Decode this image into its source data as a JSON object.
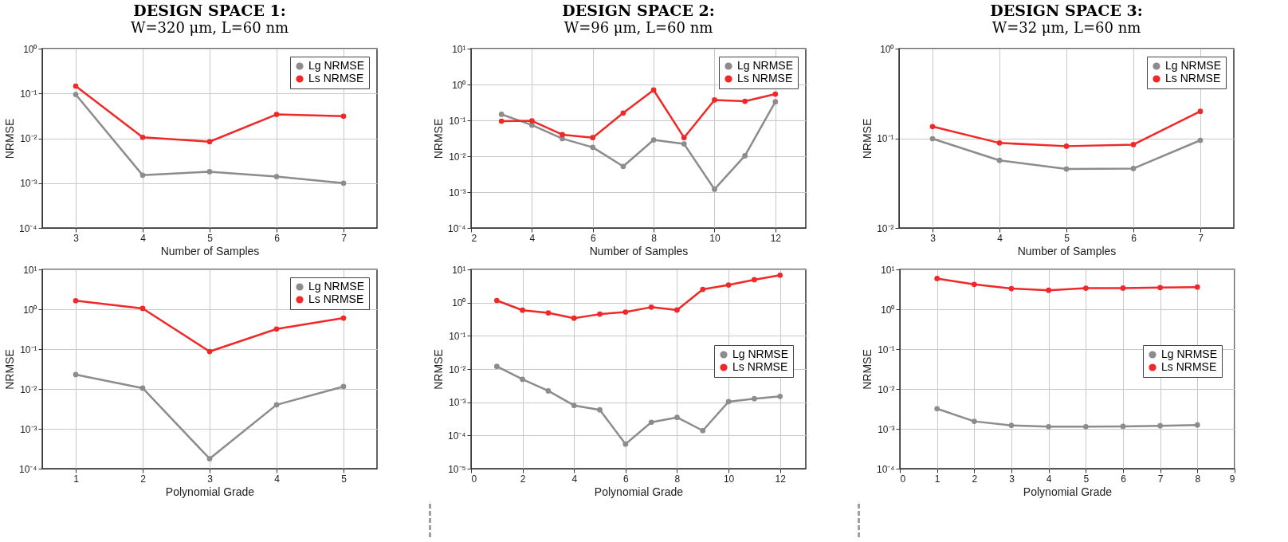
{
  "chart_data": [
    {
      "type": "line",
      "title": "DESIGN SPACE 1:",
      "subtitle": "W=320 μm, L=60 nm",
      "xlabel": "Number of Samples",
      "ylabel": "NRMSE",
      "x": [
        3,
        4,
        5,
        6,
        7
      ],
      "xlim": [
        2.5,
        7.5
      ],
      "xticks": [
        3,
        4,
        5,
        6,
        7
      ],
      "ylim": [
        0.0001,
        1
      ],
      "yticks": [
        {
          "value": 0.0001,
          "label": "10⁻⁴"
        },
        {
          "value": 0.001,
          "label": "10⁻³"
        },
        {
          "value": 0.01,
          "label": "10⁻²"
        },
        {
          "value": 0.1,
          "label": "10⁻¹"
        },
        {
          "value": 1,
          "label": "10⁰"
        }
      ],
      "log": true,
      "grid": true,
      "legend": "top right",
      "marker": "circle",
      "line_style": "solid",
      "series": [
        {
          "name": "Lg NRMSE",
          "color": "#8c8c8c",
          "values": [
            0.095,
            0.0015,
            0.0018,
            0.0014,
            0.001
          ]
        },
        {
          "name": "Ls NRMSE",
          "color": "#f02828",
          "values": [
            0.146,
            0.0105,
            0.0084,
            0.034,
            0.031
          ]
        }
      ]
    },
    {
      "type": "line",
      "title": "DESIGN SPACE 2:",
      "subtitle": "W=96 μm, L=60 nm",
      "xlabel": "Number of Samples",
      "ylabel": "NRMSE",
      "x": [
        3,
        4,
        5,
        6,
        7,
        8,
        9,
        10,
        11,
        12
      ],
      "xlim": [
        2,
        13
      ],
      "xticks": [
        2,
        4,
        6,
        8,
        10,
        12
      ],
      "ylim": [
        0.0001,
        10
      ],
      "yticks": [
        {
          "value": 0.0001,
          "label": "10⁻⁴"
        },
        {
          "value": 0.001,
          "label": "10⁻³"
        },
        {
          "value": 0.01,
          "label": "10⁻²"
        },
        {
          "value": 0.1,
          "label": "10⁻¹"
        },
        {
          "value": 1,
          "label": "10⁰"
        },
        {
          "value": 10,
          "label": "10¹"
        }
      ],
      "log": true,
      "grid": true,
      "legend": "top right",
      "marker": "circle",
      "line_style": "solid",
      "series": [
        {
          "name": "Lg NRMSE",
          "color": "#8c8c8c",
          "values": [
            0.147,
            0.074,
            0.031,
            0.0177,
            0.0052,
            0.0285,
            0.022,
            0.0012,
            0.0103,
            0.33
          ]
        },
        {
          "name": "Ls NRMSE",
          "color": "#f02828",
          "values": [
            0.095,
            0.097,
            0.04,
            0.033,
            0.16,
            0.7,
            0.033,
            0.37,
            0.34,
            0.54
          ]
        }
      ]
    },
    {
      "type": "line",
      "title": "DESIGN SPACE 3:",
      "subtitle": "W=32 μm, L=60 nm",
      "xlabel": "Number of Samples",
      "ylabel": "NRMSE",
      "x": [
        3,
        4,
        5,
        6,
        7
      ],
      "xlim": [
        2.5,
        7.5
      ],
      "xticks": [
        3,
        4,
        5,
        6,
        7
      ],
      "ylim": [
        0.01,
        1
      ],
      "yticks": [
        {
          "value": 0.01,
          "label": "10⁻²"
        },
        {
          "value": 0.1,
          "label": "10⁻¹"
        },
        {
          "value": 1,
          "label": "10⁰"
        }
      ],
      "log": true,
      "grid": true,
      "legend": "top right",
      "marker": "circle",
      "line_style": "solid",
      "series": [
        {
          "name": "Lg NRMSE",
          "color": "#8c8c8c",
          "values": [
            0.099,
            0.0567,
            0.0454,
            0.046,
            0.095
          ]
        },
        {
          "name": "Ls NRMSE",
          "color": "#f02828",
          "values": [
            0.135,
            0.0887,
            0.0817,
            0.085,
            0.2
          ]
        }
      ]
    },
    {
      "type": "line",
      "xlabel": "Polynomial Grade",
      "ylabel": "NRMSE",
      "x": [
        1,
        2,
        3,
        4,
        5
      ],
      "xlim": [
        0.5,
        5.5
      ],
      "xticks": [
        1,
        2,
        3,
        4,
        5
      ],
      "ylim": [
        0.0001,
        10
      ],
      "yticks": [
        {
          "value": 0.0001,
          "label": "10⁻⁴"
        },
        {
          "value": 0.001,
          "label": "10⁻³"
        },
        {
          "value": 0.01,
          "label": "10⁻²"
        },
        {
          "value": 0.1,
          "label": "10⁻¹"
        },
        {
          "value": 1,
          "label": "10⁰"
        },
        {
          "value": 10,
          "label": "10¹"
        }
      ],
      "log": true,
      "grid": true,
      "legend": "top right",
      "marker": "circle",
      "line_style": "solid",
      "series": [
        {
          "name": "Lg NRMSE",
          "color": "#8c8c8c",
          "values": [
            0.023,
            0.0105,
            0.000178,
            0.004,
            0.0115
          ]
        },
        {
          "name": "Ls NRMSE",
          "color": "#f02828",
          "values": [
            1.64,
            1.05,
            0.087,
            0.32,
            0.6
          ]
        }
      ]
    },
    {
      "type": "line",
      "xlabel": "Polynomial Grade",
      "ylabel": "NRMSE",
      "x": [
        1,
        2,
        3,
        4,
        5,
        6,
        7,
        8,
        9,
        10,
        11,
        12
      ],
      "xlim": [
        0,
        13
      ],
      "xticks": [
        0,
        2,
        4,
        6,
        8,
        10,
        12
      ],
      "ylim": [
        1e-05,
        10
      ],
      "yticks": [
        {
          "value": 1e-05,
          "label": "10⁻⁵"
        },
        {
          "value": 0.0001,
          "label": "10⁻⁴"
        },
        {
          "value": 0.001,
          "label": "10⁻³"
        },
        {
          "value": 0.01,
          "label": "10⁻²"
        },
        {
          "value": 0.1,
          "label": "10⁻¹"
        },
        {
          "value": 1,
          "label": "10⁰"
        },
        {
          "value": 10,
          "label": "10¹"
        }
      ],
      "log": true,
      "grid": true,
      "legend": "right",
      "marker": "circle",
      "line_style": "solid",
      "series": [
        {
          "name": "Lg NRMSE",
          "color": "#8c8c8c",
          "values": [
            0.012,
            0.0049,
            0.0022,
            0.0008,
            0.00059,
            5.5e-05,
            0.00025,
            0.00035,
            0.00014,
            0.00104,
            0.00128,
            0.0015
          ]
        },
        {
          "name": "Ls NRMSE",
          "color": "#f02828",
          "values": [
            1.16,
            0.59,
            0.49,
            0.34,
            0.45,
            0.52,
            0.73,
            0.6,
            2.5,
            3.4,
            4.9,
            6.7
          ]
        }
      ]
    },
    {
      "type": "line",
      "xlabel": "Polynomial Grade",
      "ylabel": "NRMSE",
      "x": [
        1,
        2,
        3,
        4,
        5,
        6,
        7,
        8
      ],
      "xlim": [
        0,
        9
      ],
      "xticks": [
        0,
        1,
        2,
        3,
        4,
        5,
        6,
        7,
        8,
        9
      ],
      "ylim": [
        0.0001,
        10
      ],
      "yticks": [
        {
          "value": 0.0001,
          "label": "10⁻⁴"
        },
        {
          "value": 0.001,
          "label": "10⁻³"
        },
        {
          "value": 0.01,
          "label": "10⁻²"
        },
        {
          "value": 0.1,
          "label": "10⁻¹"
        },
        {
          "value": 1,
          "label": "10⁰"
        },
        {
          "value": 10,
          "label": "10¹"
        }
      ],
      "log": true,
      "grid": true,
      "legend": "right",
      "marker": "circle",
      "line_style": "solid",
      "series": [
        {
          "name": "Lg NRMSE",
          "color": "#8c8c8c",
          "values": [
            0.0032,
            0.00154,
            0.00122,
            0.00113,
            0.00113,
            0.00115,
            0.00119,
            0.00125
          ]
        },
        {
          "name": "Ls NRMSE",
          "color": "#f02828",
          "values": [
            5.9,
            4.2,
            3.3,
            3.0,
            3.37,
            3.4,
            3.5,
            3.6
          ]
        }
      ]
    }
  ]
}
